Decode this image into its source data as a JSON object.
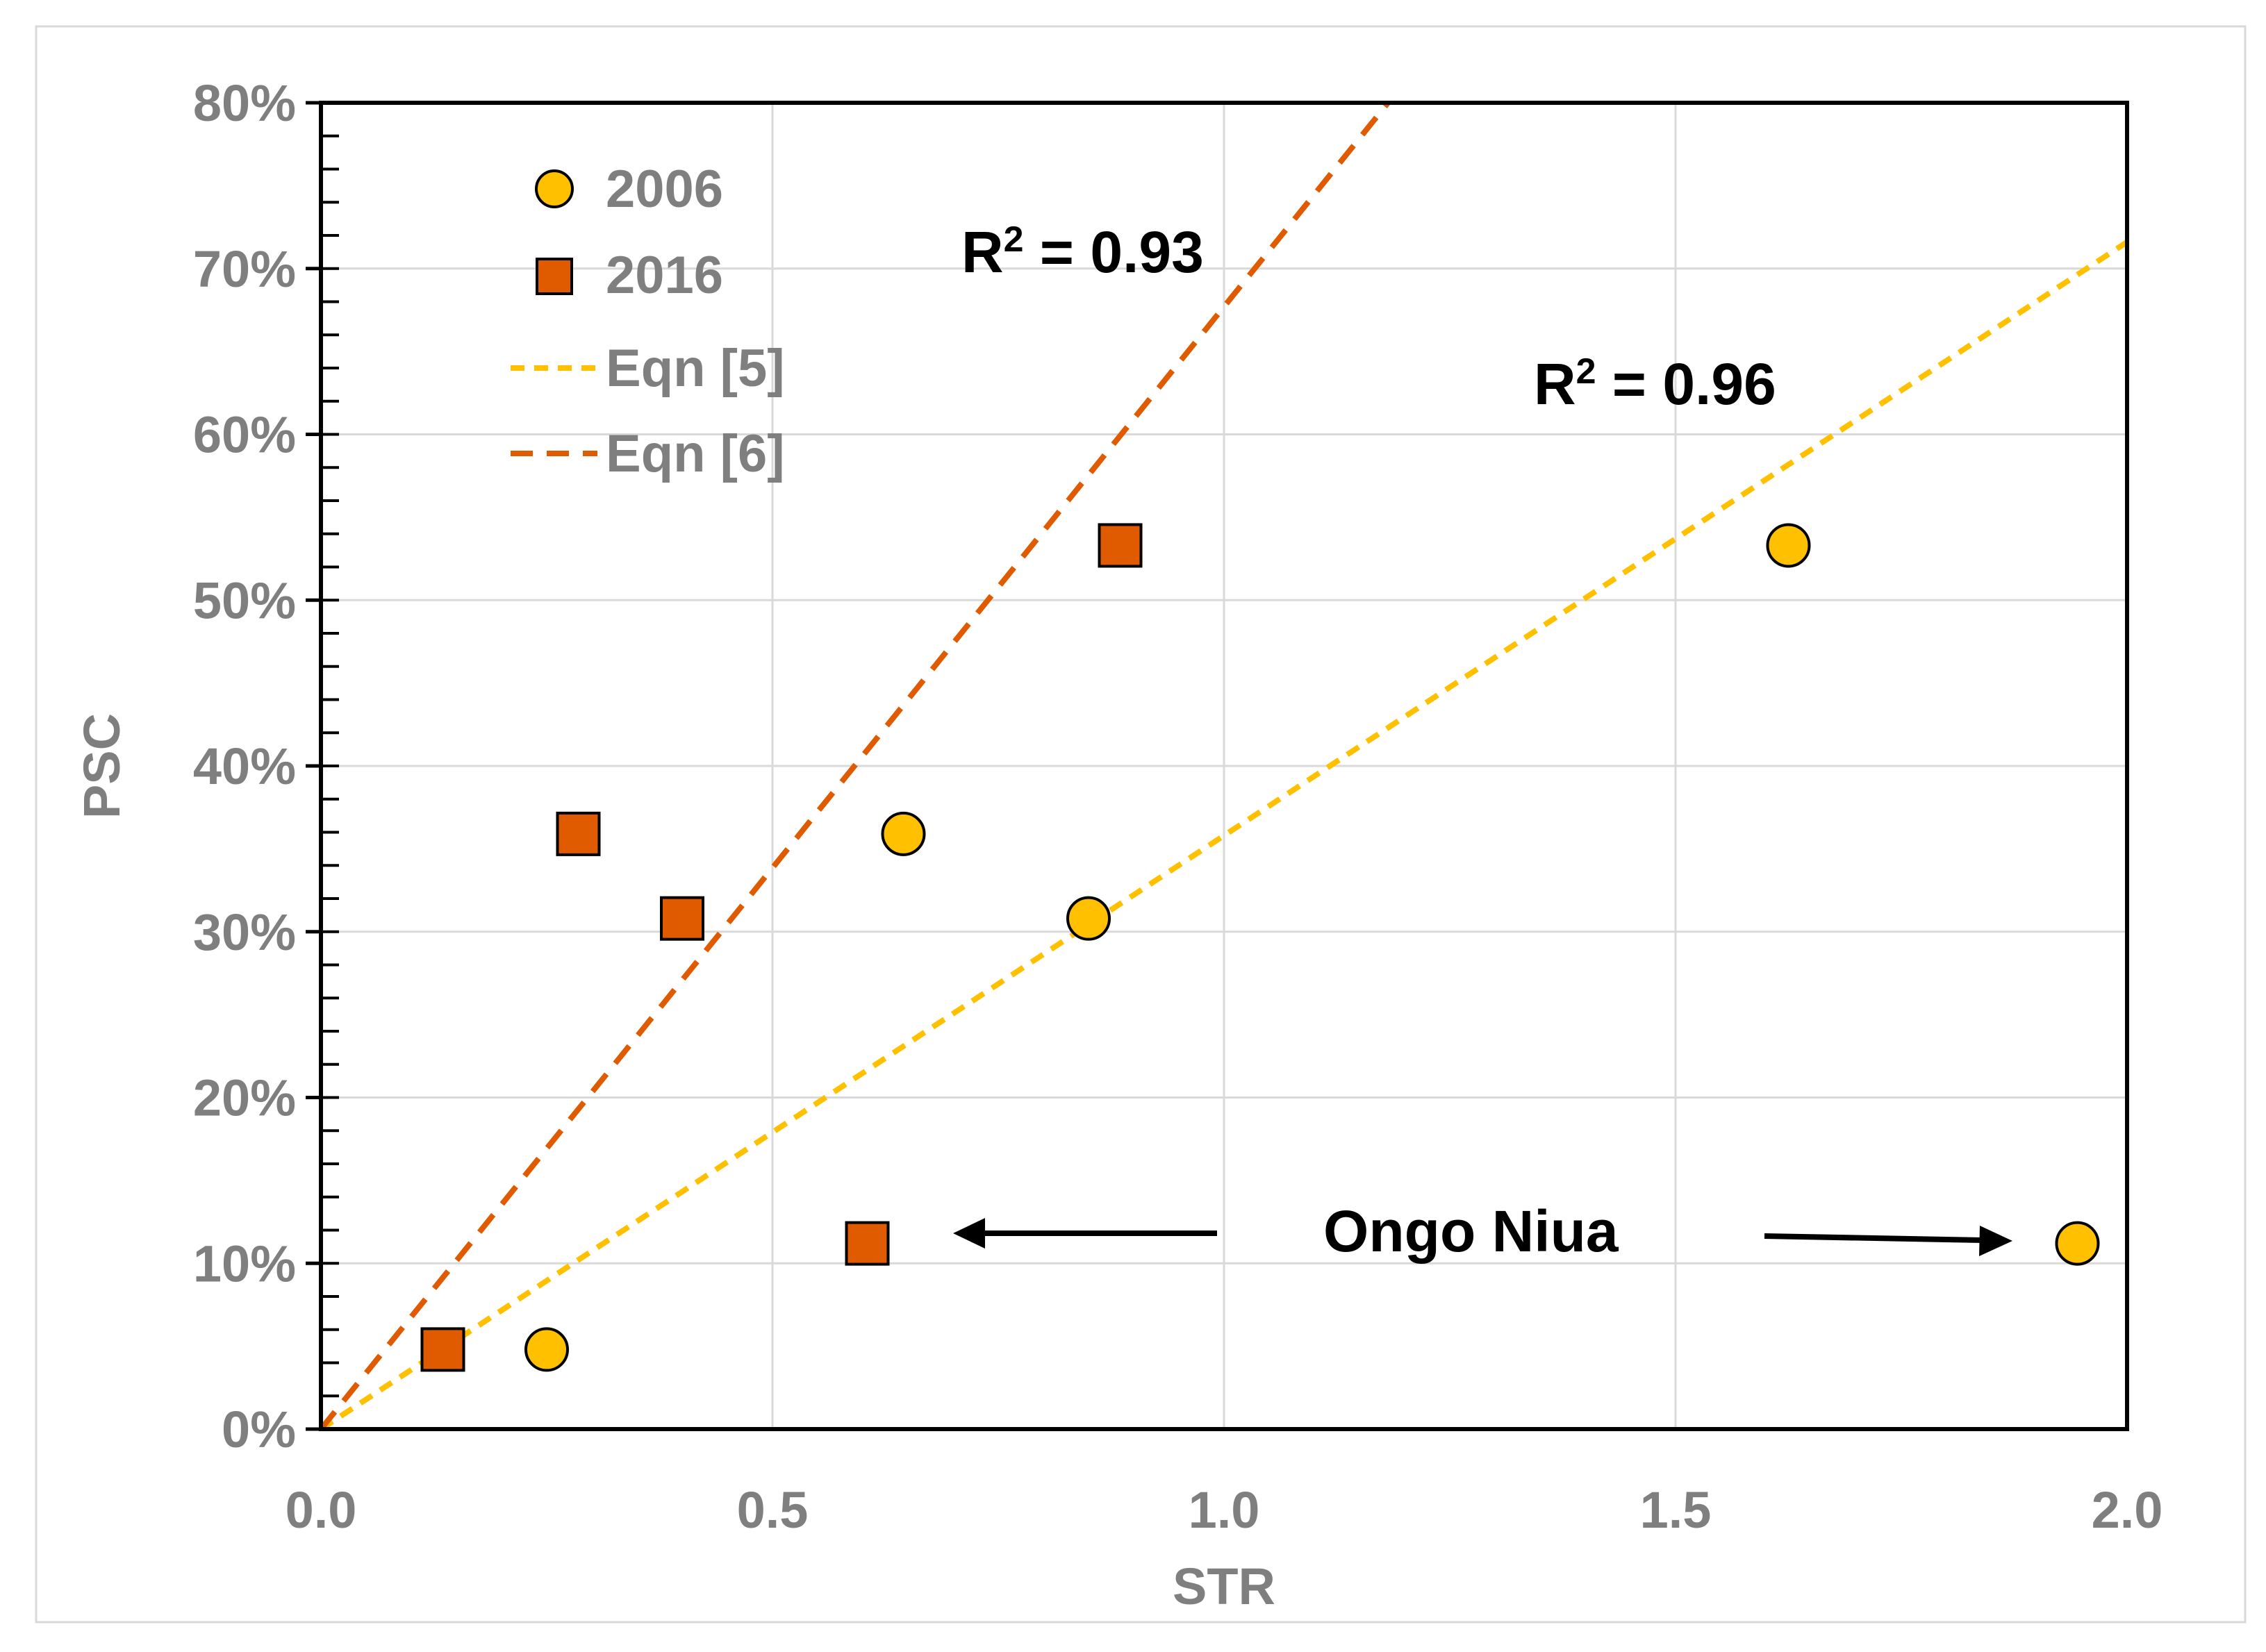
{
  "chart_data": {
    "type": "scatter",
    "title": "",
    "xlabel": "STR",
    "ylabel": "PSC",
    "xlim": [
      0,
      2.0
    ],
    "ylim": [
      0,
      0.8
    ],
    "xticks": [
      0.0,
      0.5,
      1.0,
      1.5,
      2.0
    ],
    "xtick_labels": [
      "0.0",
      "0.5",
      "1.0",
      "1.5",
      "2.0"
    ],
    "yticks": [
      0,
      0.1,
      0.2,
      0.3,
      0.4,
      0.5,
      0.6,
      0.7,
      0.8
    ],
    "ytick_labels": [
      "0%",
      "10%",
      "20%",
      "30%",
      "40%",
      "50%",
      "60%",
      "70%",
      "80%"
    ],
    "grid": true,
    "legend_position": "top-left",
    "series": [
      {
        "name": "2006",
        "kind": "points",
        "marker": "circle",
        "color": "#FFC000",
        "points": [
          {
            "x": 0.25,
            "y": 0.048
          },
          {
            "x": 0.645,
            "y": 0.359
          },
          {
            "x": 0.85,
            "y": 0.308
          },
          {
            "x": 1.625,
            "y": 0.533
          },
          {
            "x": 1.945,
            "y": 0.112
          }
        ]
      },
      {
        "name": "2016",
        "kind": "points",
        "marker": "square",
        "color": "#E05A00",
        "points": [
          {
            "x": 0.135,
            "y": 0.048
          },
          {
            "x": 0.285,
            "y": 0.359
          },
          {
            "x": 0.4,
            "y": 0.308
          },
          {
            "x": 0.605,
            "y": 0.112
          },
          {
            "x": 0.885,
            "y": 0.533
          }
        ]
      },
      {
        "name": "Eqn [5]",
        "kind": "line",
        "dash": "short",
        "color": "#FFC000",
        "slope": 0.358
      },
      {
        "name": "Eqn [6]",
        "kind": "line",
        "dash": "long",
        "color": "#E05A00",
        "slope": 0.677
      }
    ],
    "annotations": [
      {
        "text": "R2 = 0.93",
        "base": "R",
        "sup": "2",
        "rest": " = 0.93"
      },
      {
        "text": "R2 = 0.96",
        "base": "R",
        "sup": "2",
        "rest": " = 0.96"
      },
      {
        "text": "Ongo Niua"
      }
    ]
  }
}
